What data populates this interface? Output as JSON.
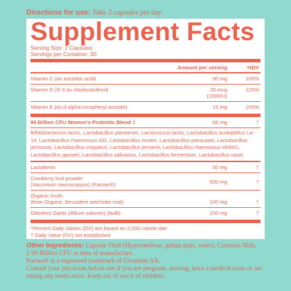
{
  "directions": {
    "label": "Directions for use:",
    "text": "Take 2 capsules per day"
  },
  "facts": {
    "title": "Supplement Facts",
    "serving_size": "Serving Size: 2 Capsules",
    "servings_per_container": "Servings per Container: 30",
    "header": {
      "amount": "Amount per serving",
      "dv": "%DV"
    },
    "vit_c": {
      "name": "Vitamin C (as ascorbic acid)",
      "amount": "90 mg",
      "dv": "100%"
    },
    "vit_d": {
      "name": "Vitamin D (D-3 as cholecalciferol)",
      "amount": "25 mcg",
      "amount2": "(1000IU)",
      "dv": "125%"
    },
    "vit_e": {
      "name": "Vitamin E (as d-alpha-tocopheryl acetate)",
      "amount": "15 mg",
      "dv": "100%"
    },
    "probiotic": {
      "name": "90 Billion CFU Women's Probiotic Blend ‡",
      "amount": "66 mg",
      "dv": "†"
    },
    "species": "Bifidobacterium lactis, Lactobacillus plantarum, Lactococcus lactis, Lactobacillus acidophilus La-14, Lactobacillus rhamnosus GG, Lactobacillus reuteri, Lactobacillus paracasei, Lactobacillus johnsonii, Lactobacillus crispatus, Lactobacillus jensenii, Lactobacillus rhamnosus HN001, Lactobacillus gasseri, Lactobacillus salivarius, Lactobacillus fermentum, Lactobacillus casei.",
    "lactoferrin": {
      "name": "Lactoferrin",
      "amount": "50 mg",
      "dv": "†"
    },
    "cranberry": {
      "name": "Cranberry fruit powder",
      "name2": "(Vaccinium macrocarpon) (Pacran®)",
      "amount": "500 mg",
      "dv": "†"
    },
    "inulin": {
      "name": "Organic Inulin",
      "name2": "(from Organic Jerusalem artichoke root)",
      "amount": "100 mg",
      "dv": "†"
    },
    "garlic": {
      "name": "Odorless Garlic (Allium sativum) (bulb)",
      "amount": "100 mg",
      "dv": "†"
    },
    "footnote1": "*Percent Daily Values (DV) are based on 2,000 calorie diet",
    "footnote2": "† Daily Value (DV) not established"
  },
  "other": {
    "label": "Other Ingredients:",
    "text": "Capsule Shell (Hypromellose, gellan gum, water). Contains Milk.",
    "line2": "‡ 90 Billion CFU at time of manufacture.",
    "line3": "Pacran® is a registered trademark of Givaudan SA.",
    "line4": "Consult your physician before use if you are pregnant, nursing, have a medical issue or are taking any medication. Keep out of reach of children."
  },
  "colors": {
    "accent": "#e8624f",
    "background": "#8fd9cf",
    "panel": "#ffffff"
  }
}
